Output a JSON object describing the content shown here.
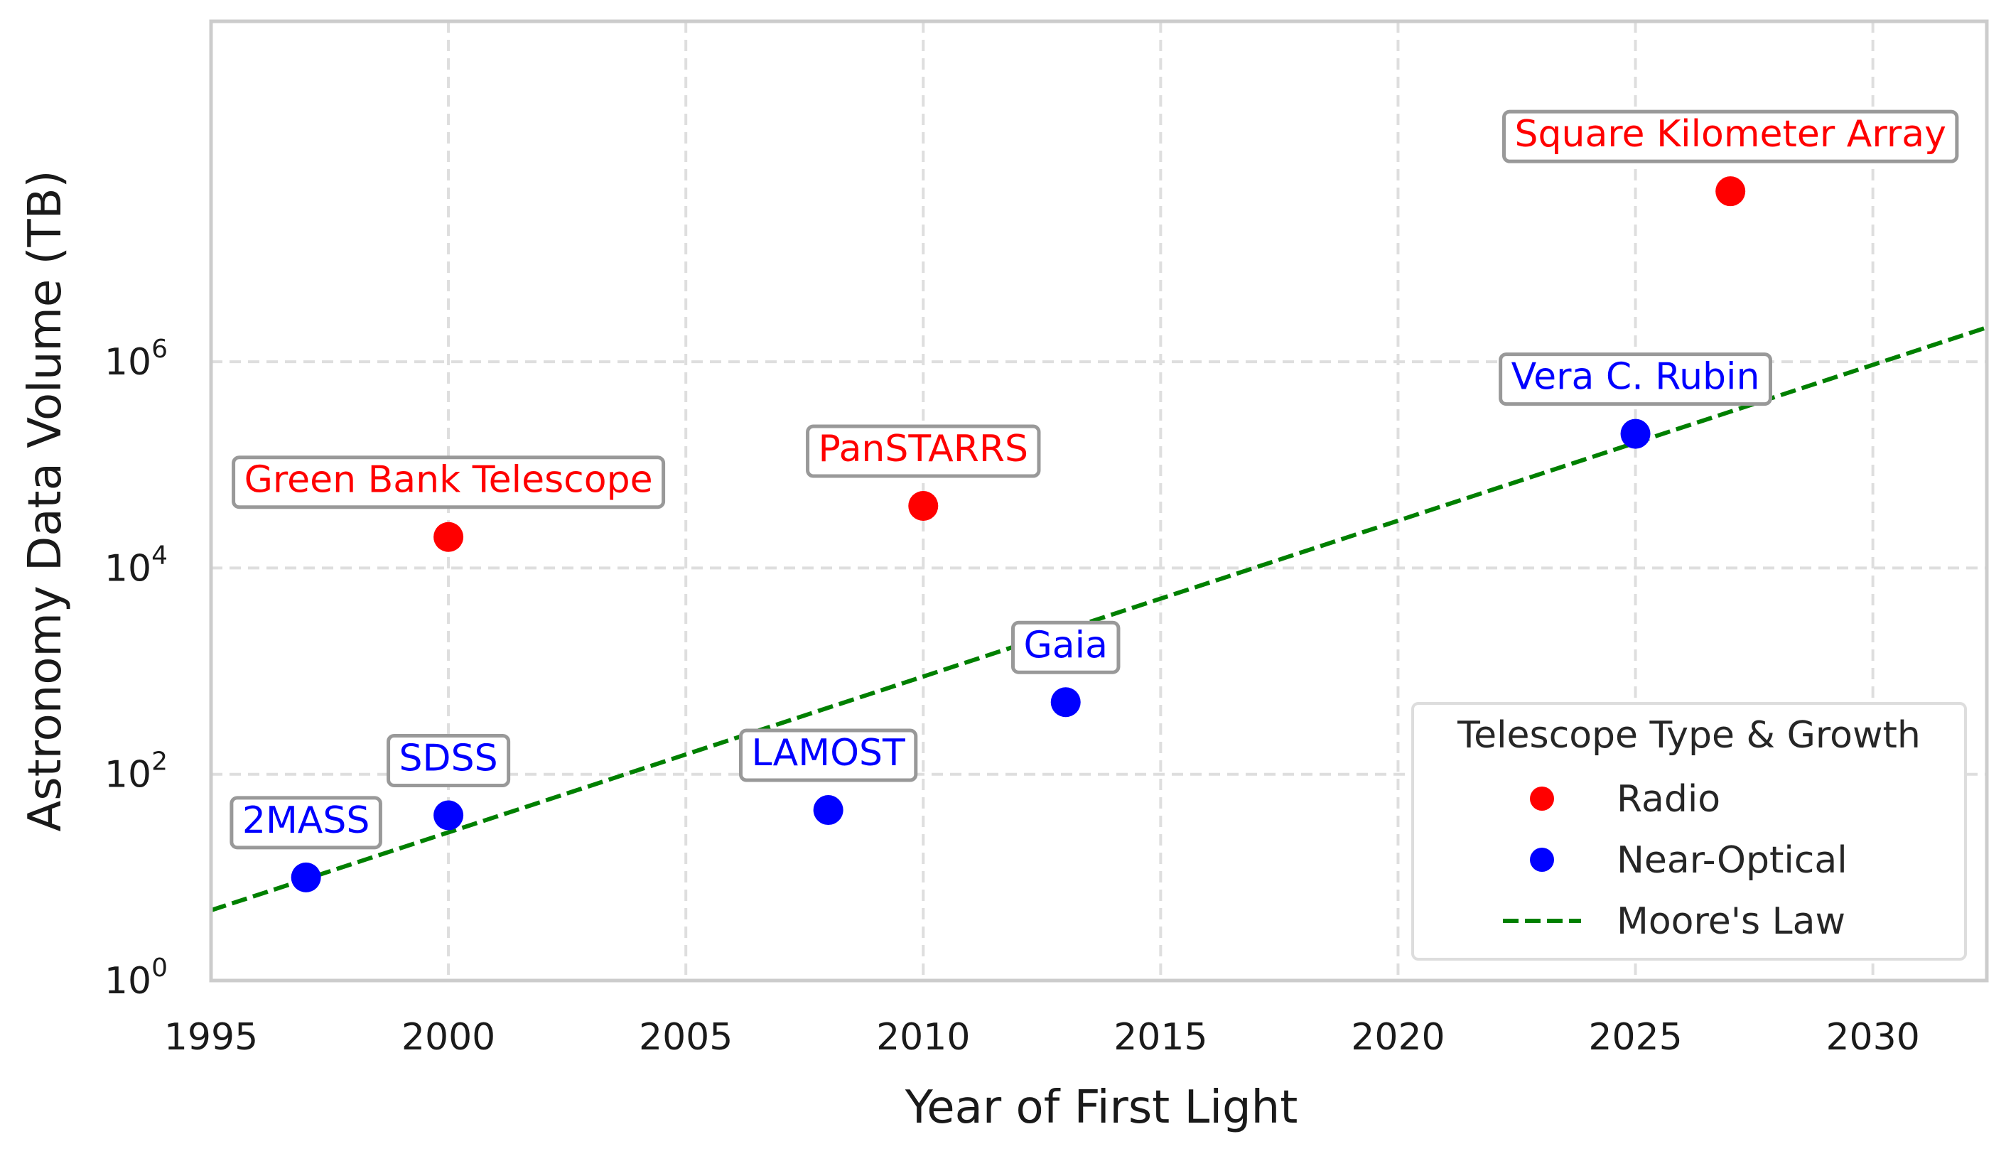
{
  "chart_data": {
    "type": "scatter",
    "title": "",
    "xlabel": "Year of First Light",
    "ylabel": "Astronomy Data Volume (TB)",
    "xlim": [
      1995,
      2032.4
    ],
    "ylim": [
      1,
      2000000000
    ],
    "yscale": "log",
    "grid": true,
    "x_ticks": [
      1995,
      2000,
      2005,
      2010,
      2015,
      2020,
      2025,
      2030
    ],
    "y_ticks": [
      {
        "value": 1,
        "base": "10",
        "exp": "0"
      },
      {
        "value": 100,
        "base": "10",
        "exp": "2"
      },
      {
        "value": 10000,
        "base": "10",
        "exp": "4"
      },
      {
        "value": 1000000,
        "base": "10",
        "exp": "6"
      }
    ],
    "colors": {
      "Radio": "#ff0000",
      "Near-Optical": "#0000ff",
      "Moore's Law": "#008000"
    },
    "points": [
      {
        "label": "2MASS",
        "x": 1997,
        "y": 10,
        "type": "Near-Optical"
      },
      {
        "label": "SDSS",
        "x": 2000,
        "y": 40,
        "type": "Near-Optical"
      },
      {
        "label": "Green Bank Telescope",
        "x": 2000,
        "y": 20000,
        "type": "Radio"
      },
      {
        "label": "LAMOST",
        "x": 2008,
        "y": 45,
        "type": "Near-Optical"
      },
      {
        "label": "PanSTARRS",
        "x": 2010,
        "y": 40000,
        "type": "Radio"
      },
      {
        "label": "Gaia",
        "x": 2013,
        "y": 500,
        "type": "Near-Optical"
      },
      {
        "label": "Vera C. Rubin",
        "x": 2025,
        "y": 200000,
        "type": "Near-Optical"
      },
      {
        "label": "Square Kilometer Array",
        "x": 2027,
        "y": 45000000,
        "type": "Radio"
      }
    ],
    "moores_law": {
      "name": "Moore's Law",
      "x": [
        1995,
        2032.4
      ],
      "y": [
        4.8,
        2150000
      ]
    },
    "legend": {
      "title": "Telescope Type & Growth",
      "position": "lower-right",
      "entries": [
        "Radio",
        "Near-Optical",
        "Moore's Law"
      ]
    }
  }
}
